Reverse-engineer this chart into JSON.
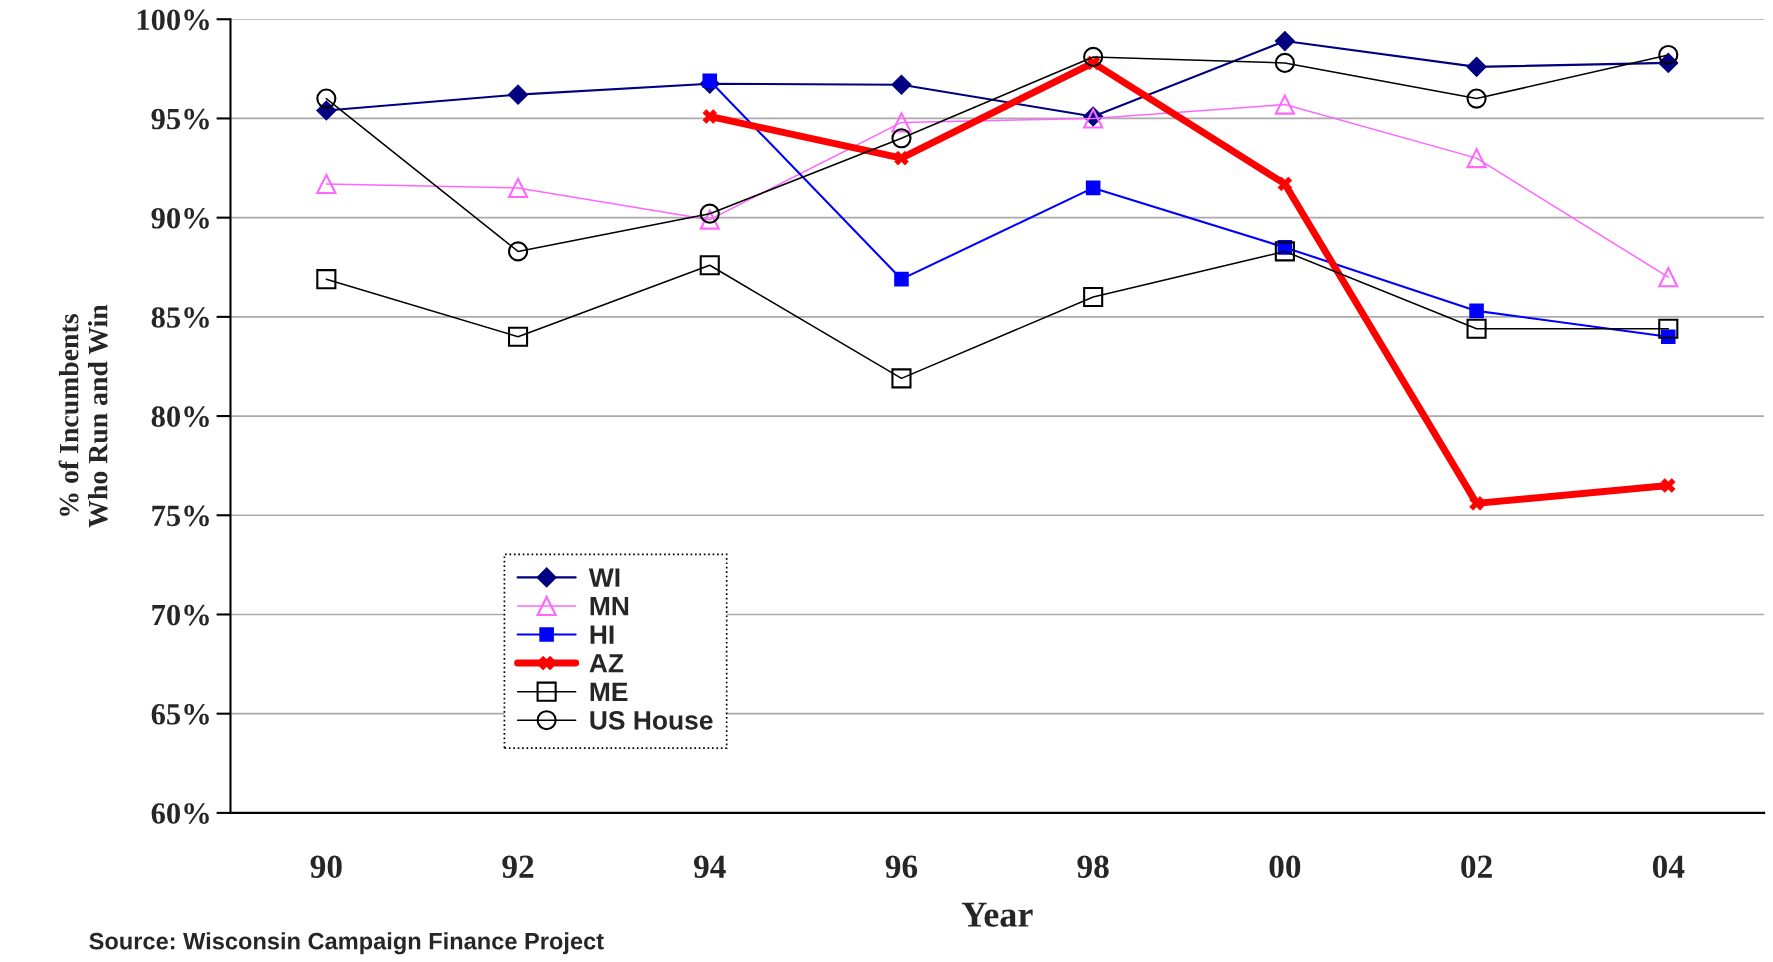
{
  "chart_data": {
    "type": "line",
    "xlabel": "Year",
    "ylabel": "% of Incumbents\nWho Run and Win",
    "categories": [
      "90",
      "92",
      "94",
      "96",
      "98",
      "00",
      "02",
      "04"
    ],
    "ylim": [
      60,
      100
    ],
    "yticks": [
      {
        "value": 60,
        "label": "60%"
      },
      {
        "value": 65,
        "label": "65%"
      },
      {
        "value": 70,
        "label": "70%"
      },
      {
        "value": 75,
        "label": "75%"
      },
      {
        "value": 80,
        "label": "80%"
      },
      {
        "value": 85,
        "label": "85%"
      },
      {
        "value": 90,
        "label": "90%"
      },
      {
        "value": 95,
        "label": "95%"
      },
      {
        "value": 100,
        "label": "100%"
      }
    ],
    "grid": "y",
    "legend": "bottom left",
    "annotations": [
      "Source: Wisconsin Campaign Finance Project"
    ],
    "series": [
      {
        "name": "WI",
        "color": "#000080",
        "marker": "diamond",
        "values": [
          95.4,
          96.2,
          96.75,
          96.7,
          95.1,
          98.9,
          97.6,
          97.8
        ]
      },
      {
        "name": "MN",
        "color": "#ff66ff",
        "marker": "triangle",
        "values": [
          91.7,
          91.5,
          89.9,
          94.8,
          95.0,
          95.7,
          93.0,
          87.0
        ]
      },
      {
        "name": "HI",
        "color": "#0000ff",
        "marker": "square",
        "values": [
          null,
          null,
          96.9,
          86.9,
          91.5,
          88.5,
          85.3,
          84.0
        ]
      },
      {
        "name": "AZ",
        "color": "#ff0000",
        "marker": "cross",
        "values": [
          null,
          null,
          95.1,
          93.0,
          97.8,
          91.7,
          75.6,
          76.5
        ]
      },
      {
        "name": "ME",
        "color": "#000000",
        "marker": "square",
        "values": [
          86.9,
          84.0,
          87.6,
          81.9,
          86.0,
          88.3,
          84.4,
          84.4
        ]
      },
      {
        "name": "US House",
        "color": "#000000",
        "marker": "circle",
        "values": [
          96.0,
          88.3,
          90.2,
          94.0,
          98.1,
          97.8,
          96.0,
          98.2
        ]
      }
    ]
  }
}
